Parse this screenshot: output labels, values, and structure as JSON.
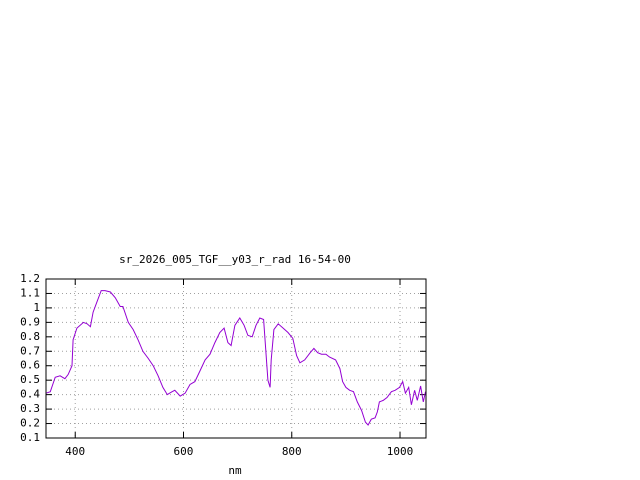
{
  "chart_data": {
    "type": "line",
    "title": "sr_2026_005_TGF__y03_r_rad 16-54-00",
    "x_label": "nm",
    "x": [
      346,
      354,
      363,
      372,
      381,
      387,
      394,
      396,
      403,
      415,
      422,
      428,
      433,
      441,
      448,
      455,
      465,
      474,
      483,
      488,
      498,
      507,
      516,
      525,
      535,
      544,
      553,
      562,
      570,
      579,
      584,
      594,
      603,
      612,
      621,
      630,
      640,
      649,
      658,
      667,
      675,
      682,
      688,
      695,
      704,
      712,
      719,
      727,
      734,
      741,
      748,
      756,
      760,
      762,
      767,
      775,
      784,
      793,
      802,
      809,
      815,
      824,
      834,
      841,
      848,
      855,
      863,
      870,
      881,
      889,
      894,
      900,
      907,
      914,
      921,
      929,
      936,
      941,
      947,
      954,
      958,
      962,
      969,
      976,
      984,
      991,
      999,
      1005,
      1010,
      1016,
      1021,
      1027,
      1032,
      1038,
      1043,
      1047
    ],
    "values": [
      0.41,
      0.42,
      0.52,
      0.53,
      0.51,
      0.54,
      0.6,
      0.78,
      0.86,
      0.9,
      0.89,
      0.87,
      0.97,
      1.05,
      1.12,
      1.12,
      1.11,
      1.07,
      1.01,
      1.01,
      0.9,
      0.85,
      0.78,
      0.7,
      0.65,
      0.6,
      0.53,
      0.45,
      0.4,
      0.42,
      0.43,
      0.39,
      0.41,
      0.47,
      0.49,
      0.56,
      0.64,
      0.68,
      0.76,
      0.83,
      0.86,
      0.76,
      0.74,
      0.88,
      0.93,
      0.88,
      0.81,
      0.8,
      0.88,
      0.93,
      0.92,
      0.5,
      0.45,
      0.64,
      0.85,
      0.89,
      0.86,
      0.83,
      0.79,
      0.67,
      0.62,
      0.64,
      0.69,
      0.72,
      0.69,
      0.68,
      0.68,
      0.66,
      0.64,
      0.58,
      0.49,
      0.45,
      0.43,
      0.42,
      0.35,
      0.29,
      0.21,
      0.19,
      0.23,
      0.24,
      0.28,
      0.35,
      0.36,
      0.38,
      0.42,
      0.43,
      0.45,
      0.49,
      0.41,
      0.45,
      0.33,
      0.43,
      0.36,
      0.46,
      0.35,
      0.42
    ],
    "color": "#9400d3",
    "xlim": [
      346,
      1048
    ],
    "xticks": [
      400,
      600,
      800,
      1000
    ],
    "ylim": [
      0.1,
      1.2
    ],
    "yticks": [
      0.1,
      0.2,
      0.3,
      0.4,
      0.5,
      0.6,
      0.7,
      0.8,
      0.9,
      1,
      1.1,
      1.2
    ],
    "grid": true
  }
}
